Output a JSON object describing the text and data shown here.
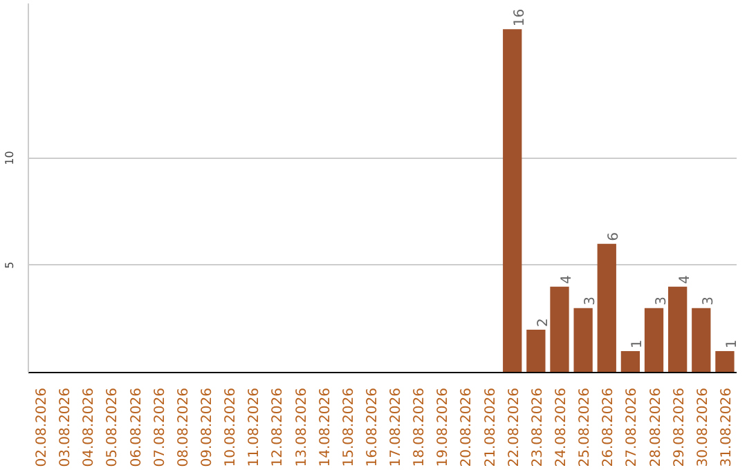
{
  "chart_data": {
    "type": "bar",
    "categories": [
      "02.08.2026",
      "03.08.2026",
      "04.08.2026",
      "05.08.2026",
      "06.08.2026",
      "07.08.2026",
      "08.08.2026",
      "09.08.2026",
      "10.08.2026",
      "11.08.2026",
      "12.08.2026",
      "13.08.2026",
      "14.08.2026",
      "15.08.2026",
      "16.08.2026",
      "17.08.2026",
      "18.08.2026",
      "19.08.2026",
      "20.08.2026",
      "21.08.2026",
      "22.08.2026",
      "23.08.2026",
      "24.08.2026",
      "25.08.2026",
      "26.08.2026",
      "27.08.2026",
      "28.08.2026",
      "29.08.2026",
      "30.08.2026",
      "31.08.2026"
    ],
    "values": [
      0,
      0,
      0,
      0,
      0,
      0,
      0,
      0,
      0,
      0,
      0,
      0,
      0,
      0,
      0,
      0,
      0,
      0,
      0,
      0,
      16,
      2,
      4,
      3,
      6,
      1,
      3,
      4,
      3,
      1
    ],
    "value_labels": [
      null,
      null,
      null,
      null,
      null,
      null,
      null,
      null,
      null,
      null,
      null,
      null,
      null,
      null,
      null,
      null,
      null,
      null,
      null,
      null,
      "16",
      "2",
      "4",
      "3",
      "6",
      "1",
      "3",
      "4",
      "3",
      "1"
    ],
    "color": "#a0522d",
    "ylim": [
      0,
      17.2
    ],
    "yticks": [
      5,
      10
    ],
    "grid": "y"
  }
}
